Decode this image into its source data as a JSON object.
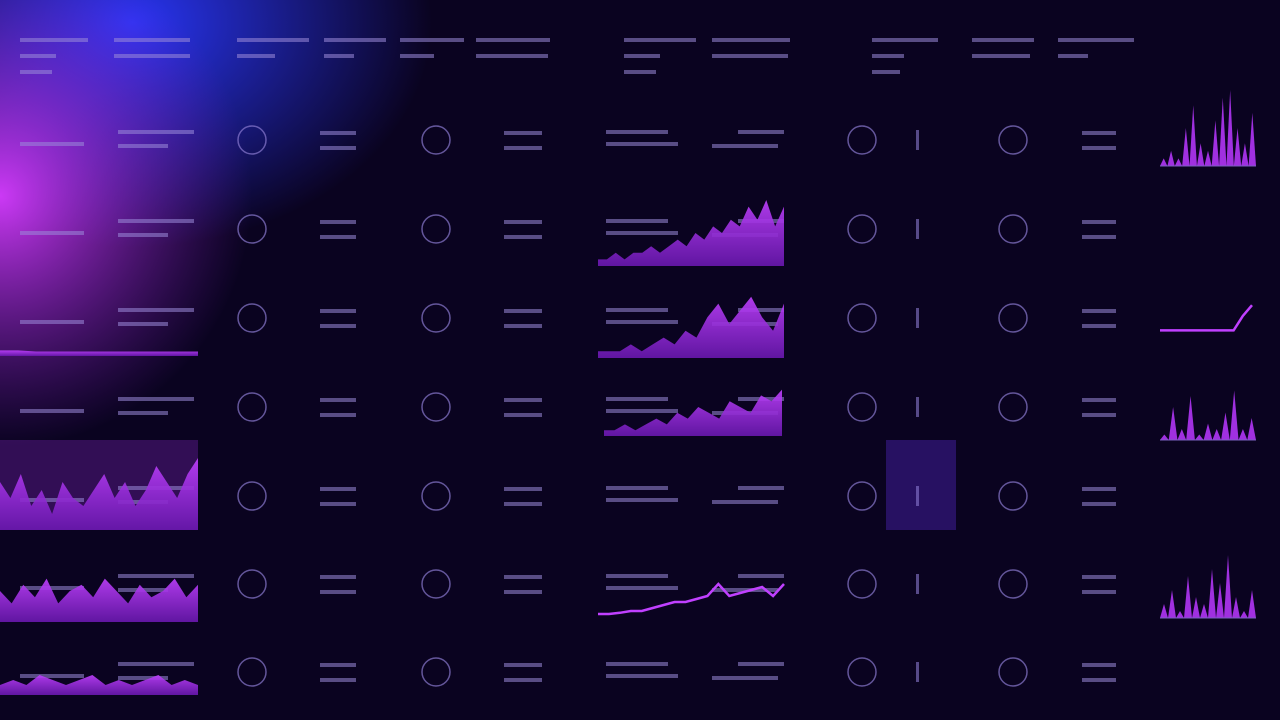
{
  "charts": [
    {
      "type": "area",
      "ylim": [
        0,
        10
      ],
      "values": [
        1,
        1,
        0.8,
        0.8,
        0.8,
        0.8,
        0.8,
        0.8,
        0.8,
        0.8,
        0.8,
        0.8
      ]
    },
    {
      "type": "area",
      "ylim": [
        0,
        10
      ],
      "values": [
        6,
        4,
        7,
        3,
        5,
        2,
        6,
        4,
        3,
        5,
        7,
        4,
        6,
        3,
        5,
        8,
        6,
        4,
        7,
        9
      ]
    },
    {
      "type": "area",
      "ylim": [
        0,
        10
      ],
      "values": [
        5,
        3,
        6,
        4,
        7,
        3,
        5,
        6,
        4,
        7,
        5,
        3,
        6,
        4,
        5,
        7,
        4,
        6
      ]
    },
    {
      "type": "area",
      "ylim": [
        0,
        10
      ],
      "values": [
        2,
        3,
        2,
        4,
        3,
        2,
        3,
        4,
        2,
        3,
        2,
        3,
        4,
        2,
        3,
        2
      ]
    },
    {
      "type": "area",
      "ylim": [
        0,
        10
      ],
      "values": [
        1,
        1,
        2,
        1,
        2,
        2,
        3,
        2,
        3,
        4,
        3,
        5,
        4,
        6,
        5,
        7,
        6,
        9,
        7,
        10,
        6,
        9
      ]
    },
    {
      "type": "area",
      "ylim": [
        0,
        10
      ],
      "values": [
        1,
        1,
        1,
        2,
        1,
        2,
        3,
        2,
        4,
        3,
        6,
        8,
        5,
        7,
        9,
        6,
        4,
        8
      ]
    },
    {
      "type": "area",
      "ylim": [
        0,
        10
      ],
      "values": [
        1,
        1,
        2,
        1,
        2,
        3,
        2,
        4,
        3,
        5,
        4,
        3,
        6,
        5,
        4,
        7,
        6,
        8
      ]
    },
    {
      "type": "line",
      "ylim": [
        0,
        10
      ],
      "values": [
        1,
        1,
        1.2,
        1.5,
        1.5,
        2,
        2.5,
        3,
        3,
        3.5,
        4,
        6,
        4,
        4.5,
        5,
        5.5,
        4,
        6
      ]
    },
    {
      "type": "bars",
      "ylim": [
        0,
        10
      ],
      "values": [
        1,
        2,
        1,
        5,
        8,
        3,
        2,
        6,
        9,
        10,
        5,
        3,
        7
      ]
    },
    {
      "type": "line",
      "ylim": [
        0,
        10
      ],
      "values": [
        1,
        1,
        1,
        1,
        1,
        1,
        1,
        1,
        1,
        5,
        8
      ]
    },
    {
      "type": "bars",
      "ylim": [
        0,
        10
      ],
      "values": [
        1,
        6,
        2,
        8,
        1,
        3,
        2,
        5,
        9,
        2,
        4
      ]
    },
    {
      "type": "bars",
      "ylim": [
        0,
        10
      ],
      "values": [
        2,
        4,
        1,
        6,
        3,
        2,
        7,
        5,
        9,
        3,
        1,
        4
      ]
    }
  ]
}
